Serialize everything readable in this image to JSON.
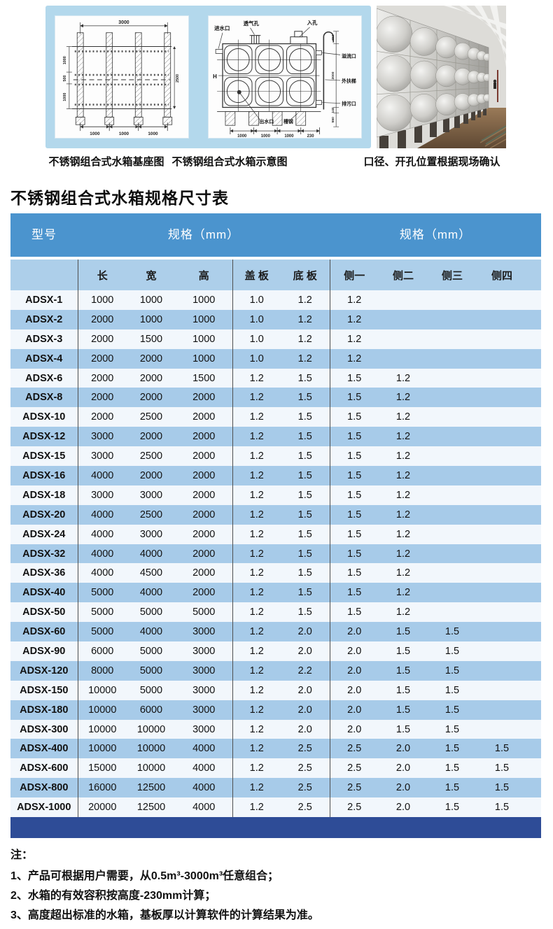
{
  "page": {
    "title": "不锈钢组合式水箱规格尺寸表"
  },
  "figures": {
    "base_diagram": {
      "caption": "不锈钢组合式水箱基座图",
      "dim_top": "3000",
      "dim_left_1": "1000",
      "dim_left_2": "500",
      "dim_left_3": "1000",
      "dim_right": "2500",
      "dim_bottom": "1000"
    },
    "schematic": {
      "caption": "不锈钢组合式水箱示意图",
      "label_inlet": "进水口",
      "label_vent": "透气孔",
      "label_manhole": "入孔",
      "label_overflow": "溢流口",
      "label_ladder": "外扶梯",
      "label_drain": "排污口",
      "label_outlet": "出水口",
      "label_channel": "槽钢",
      "label_height": "H",
      "dim_bottom": "1000",
      "dim_offset": "230",
      "dim_650": "650",
      "dim_2000": "2000",
      "dim_140": "140",
      "dim_550": "550"
    },
    "photo": {
      "caption": "口径、开孔位置根据现场确认"
    }
  },
  "table": {
    "header_groups": [
      "型号",
      "规格（mm）",
      "规格（mm）"
    ],
    "columns": [
      "长",
      "宽",
      "高",
      "盖 板",
      "底 板",
      "侧一",
      "侧二",
      "侧三",
      "侧四"
    ],
    "rows": [
      [
        "ADSX-1",
        "1000",
        "1000",
        "1000",
        "1.0",
        "1.2",
        "1.2",
        "",
        "",
        ""
      ],
      [
        "ADSX-2",
        "2000",
        "1000",
        "1000",
        "1.0",
        "1.2",
        "1.2",
        "",
        "",
        ""
      ],
      [
        "ADSX-3",
        "2000",
        "1500",
        "1000",
        "1.0",
        "1.2",
        "1.2",
        "",
        "",
        ""
      ],
      [
        "ADSX-4",
        "2000",
        "2000",
        "1000",
        "1.0",
        "1.2",
        "1.2",
        "",
        "",
        ""
      ],
      [
        "ADSX-6",
        "2000",
        "2000",
        "1500",
        "1.2",
        "1.5",
        "1.5",
        "1.2",
        "",
        ""
      ],
      [
        "ADSX-8",
        "2000",
        "2000",
        "2000",
        "1.2",
        "1.5",
        "1.5",
        "1.2",
        "",
        ""
      ],
      [
        "ADSX-10",
        "2000",
        "2500",
        "2000",
        "1.2",
        "1.5",
        "1.5",
        "1.2",
        "",
        ""
      ],
      [
        "ADSX-12",
        "3000",
        "2000",
        "2000",
        "1.2",
        "1.5",
        "1.5",
        "1.2",
        "",
        ""
      ],
      [
        "ADSX-15",
        "3000",
        "2500",
        "2000",
        "1.2",
        "1.5",
        "1.5",
        "1.2",
        "",
        ""
      ],
      [
        "ADSX-16",
        "4000",
        "2000",
        "2000",
        "1.2",
        "1.5",
        "1.5",
        "1.2",
        "",
        ""
      ],
      [
        "ADSX-18",
        "3000",
        "3000",
        "2000",
        "1.2",
        "1.5",
        "1.5",
        "1.2",
        "",
        ""
      ],
      [
        "ADSX-20",
        "4000",
        "2500",
        "2000",
        "1.2",
        "1.5",
        "1.5",
        "1.2",
        "",
        ""
      ],
      [
        "ADSX-24",
        "4000",
        "3000",
        "2000",
        "1.2",
        "1.5",
        "1.5",
        "1.2",
        "",
        ""
      ],
      [
        "ADSX-32",
        "4000",
        "4000",
        "2000",
        "1.2",
        "1.5",
        "1.5",
        "1.2",
        "",
        ""
      ],
      [
        "ADSX-36",
        "4000",
        "4500",
        "2000",
        "1.2",
        "1.5",
        "1.5",
        "1.2",
        "",
        ""
      ],
      [
        "ADSX-40",
        "5000",
        "4000",
        "2000",
        "1.2",
        "1.5",
        "1.5",
        "1.2",
        "",
        ""
      ],
      [
        "ADSX-50",
        "5000",
        "5000",
        "5000",
        "1.2",
        "1.5",
        "1.5",
        "1.2",
        "",
        ""
      ],
      [
        "ADSX-60",
        "5000",
        "4000",
        "3000",
        "1.2",
        "2.0",
        "2.0",
        "1.5",
        "1.5",
        ""
      ],
      [
        "ADSX-90",
        "6000",
        "5000",
        "3000",
        "1.2",
        "2.0",
        "2.0",
        "1.5",
        "1.5",
        ""
      ],
      [
        "ADSX-120",
        "8000",
        "5000",
        "3000",
        "1.2",
        "2.2",
        "2.0",
        "1.5",
        "1.5",
        ""
      ],
      [
        "ADSX-150",
        "10000",
        "5000",
        "3000",
        "1.2",
        "2.0",
        "2.0",
        "1.5",
        "1.5",
        ""
      ],
      [
        "ADSX-180",
        "10000",
        "6000",
        "3000",
        "1.2",
        "2.0",
        "2.0",
        "1.5",
        "1.5",
        ""
      ],
      [
        "ADSX-300",
        "10000",
        "10000",
        "3000",
        "1.2",
        "2.0",
        "2.0",
        "1.5",
        "1.5",
        ""
      ],
      [
        "ADSX-400",
        "10000",
        "10000",
        "4000",
        "1.2",
        "2.5",
        "2.5",
        "2.0",
        "1.5",
        "1.5"
      ],
      [
        "ADSX-600",
        "15000",
        "10000",
        "4000",
        "1.2",
        "2.5",
        "2.5",
        "2.0",
        "1.5",
        "1.5"
      ],
      [
        "ADSX-800",
        "16000",
        "12500",
        "4000",
        "1.2",
        "2.5",
        "2.5",
        "2.0",
        "1.5",
        "1.5"
      ],
      [
        "ADSX-1000",
        "20000",
        "12500",
        "4000",
        "1.2",
        "2.5",
        "2.5",
        "2.0",
        "1.5",
        "1.5"
      ]
    ]
  },
  "notes": {
    "heading": "注：",
    "item1": "1、产品可根据用户需要，从0.5m³-3000m³任意组合；",
    "item2": "2、水箱的有效容积按高度-230mm计算；",
    "item3": "3、高度超出标准的水箱，基板厚以计算软件的计算结果为准。"
  },
  "colors": {
    "header_blue": "#4b94ce",
    "subheader_blue": "#adcfea",
    "row_light": "#f2f7fc",
    "row_blue": "#a7cbe9",
    "footer_navy": "#2e4c97",
    "panel_blue": "#b3d8ec"
  }
}
